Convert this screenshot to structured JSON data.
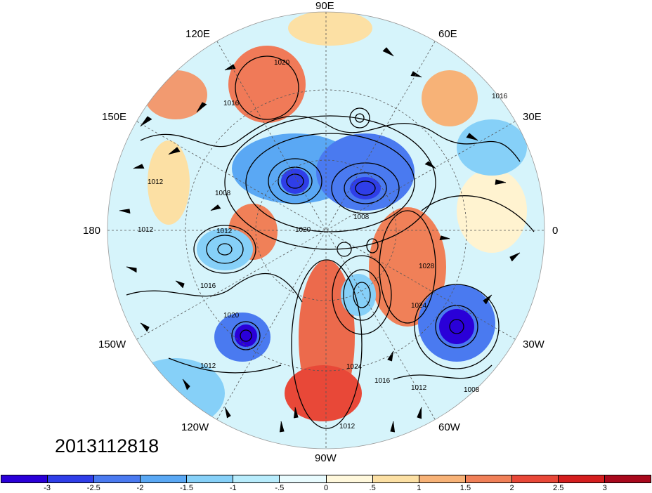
{
  "map": {
    "longitude_labels": [
      "90E",
      "60E",
      "30E",
      "0",
      "30W",
      "60W",
      "90W",
      "120W",
      "150W",
      "180",
      "150E",
      "120E"
    ],
    "contour_labels": [
      "1020",
      "1016",
      "1012",
      "1008",
      "1024",
      "1028",
      "1016",
      "1012",
      "1008",
      "1012",
      "1020",
      "1016",
      "1008",
      "1012",
      "1016",
      "1012",
      "1024",
      "1020",
      "1012"
    ],
    "datestamp": "2013112818"
  },
  "colorbar": {
    "colors": [
      "#2a00d8",
      "#2f3ee8",
      "#4a7af0",
      "#5aa8f4",
      "#86d0f8",
      "#b8ecfc",
      "#e8fbfe",
      "#fff8dc",
      "#fce0a4",
      "#f7b277",
      "#f08058",
      "#e84838",
      "#d41e1e",
      "#a8081c"
    ],
    "tick_labels": [
      "-3",
      "-2.5",
      "-2",
      "-1.5",
      "-1",
      "-.5",
      "0",
      ".5",
      "1",
      "1.5",
      "2",
      "2.5",
      "3"
    ]
  }
}
